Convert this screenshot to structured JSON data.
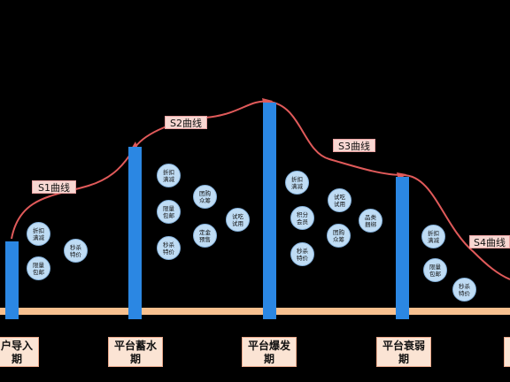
{
  "colors": {
    "background": "#000000",
    "curve": "#e05a5a",
    "bar": "#2b87e3",
    "baseline": "#f7c08f",
    "bubble_fill": "#bfdcf4",
    "label_fill": "#fbe4d4"
  },
  "phases": [
    {
      "line1": "户导入",
      "line2": "期"
    },
    {
      "line1": "平台蓄水",
      "line2": "期"
    },
    {
      "line1": "平台爆发",
      "line2": "期"
    },
    {
      "line1": "平台衰弱",
      "line2": "期"
    }
  ],
  "curves": [
    {
      "label": "S1曲线"
    },
    {
      "label": "S2曲线"
    },
    {
      "label": "S3曲线"
    },
    {
      "label": "S4曲线"
    }
  ],
  "bubbles": [
    {
      "l1": "折扣",
      "l2": "满减"
    },
    {
      "l1": "限量",
      "l2": "包邮"
    },
    {
      "l1": "秒杀",
      "l2": "特价"
    },
    {
      "l1": "折扣",
      "l2": "满减"
    },
    {
      "l1": "限量",
      "l2": "包邮"
    },
    {
      "l1": "秒杀",
      "l2": "特价"
    },
    {
      "l1": "团购",
      "l2": "众筹"
    },
    {
      "l1": "定金",
      "l2": "预售"
    },
    {
      "l1": "试吃",
      "l2": "试用"
    },
    {
      "l1": "折扣",
      "l2": "满减"
    },
    {
      "l1": "积分",
      "l2": "会员"
    },
    {
      "l1": "秒杀",
      "l2": "特价"
    },
    {
      "l1": "试吃",
      "l2": "试用"
    },
    {
      "l1": "团购",
      "l2": "众筹"
    },
    {
      "l1": "品类",
      "l2": "捆绑"
    },
    {
      "l1": "折扣",
      "l2": "满减"
    },
    {
      "l1": "限量",
      "l2": "包邮"
    },
    {
      "l1": "秒杀",
      "l2": "特价"
    }
  ]
}
